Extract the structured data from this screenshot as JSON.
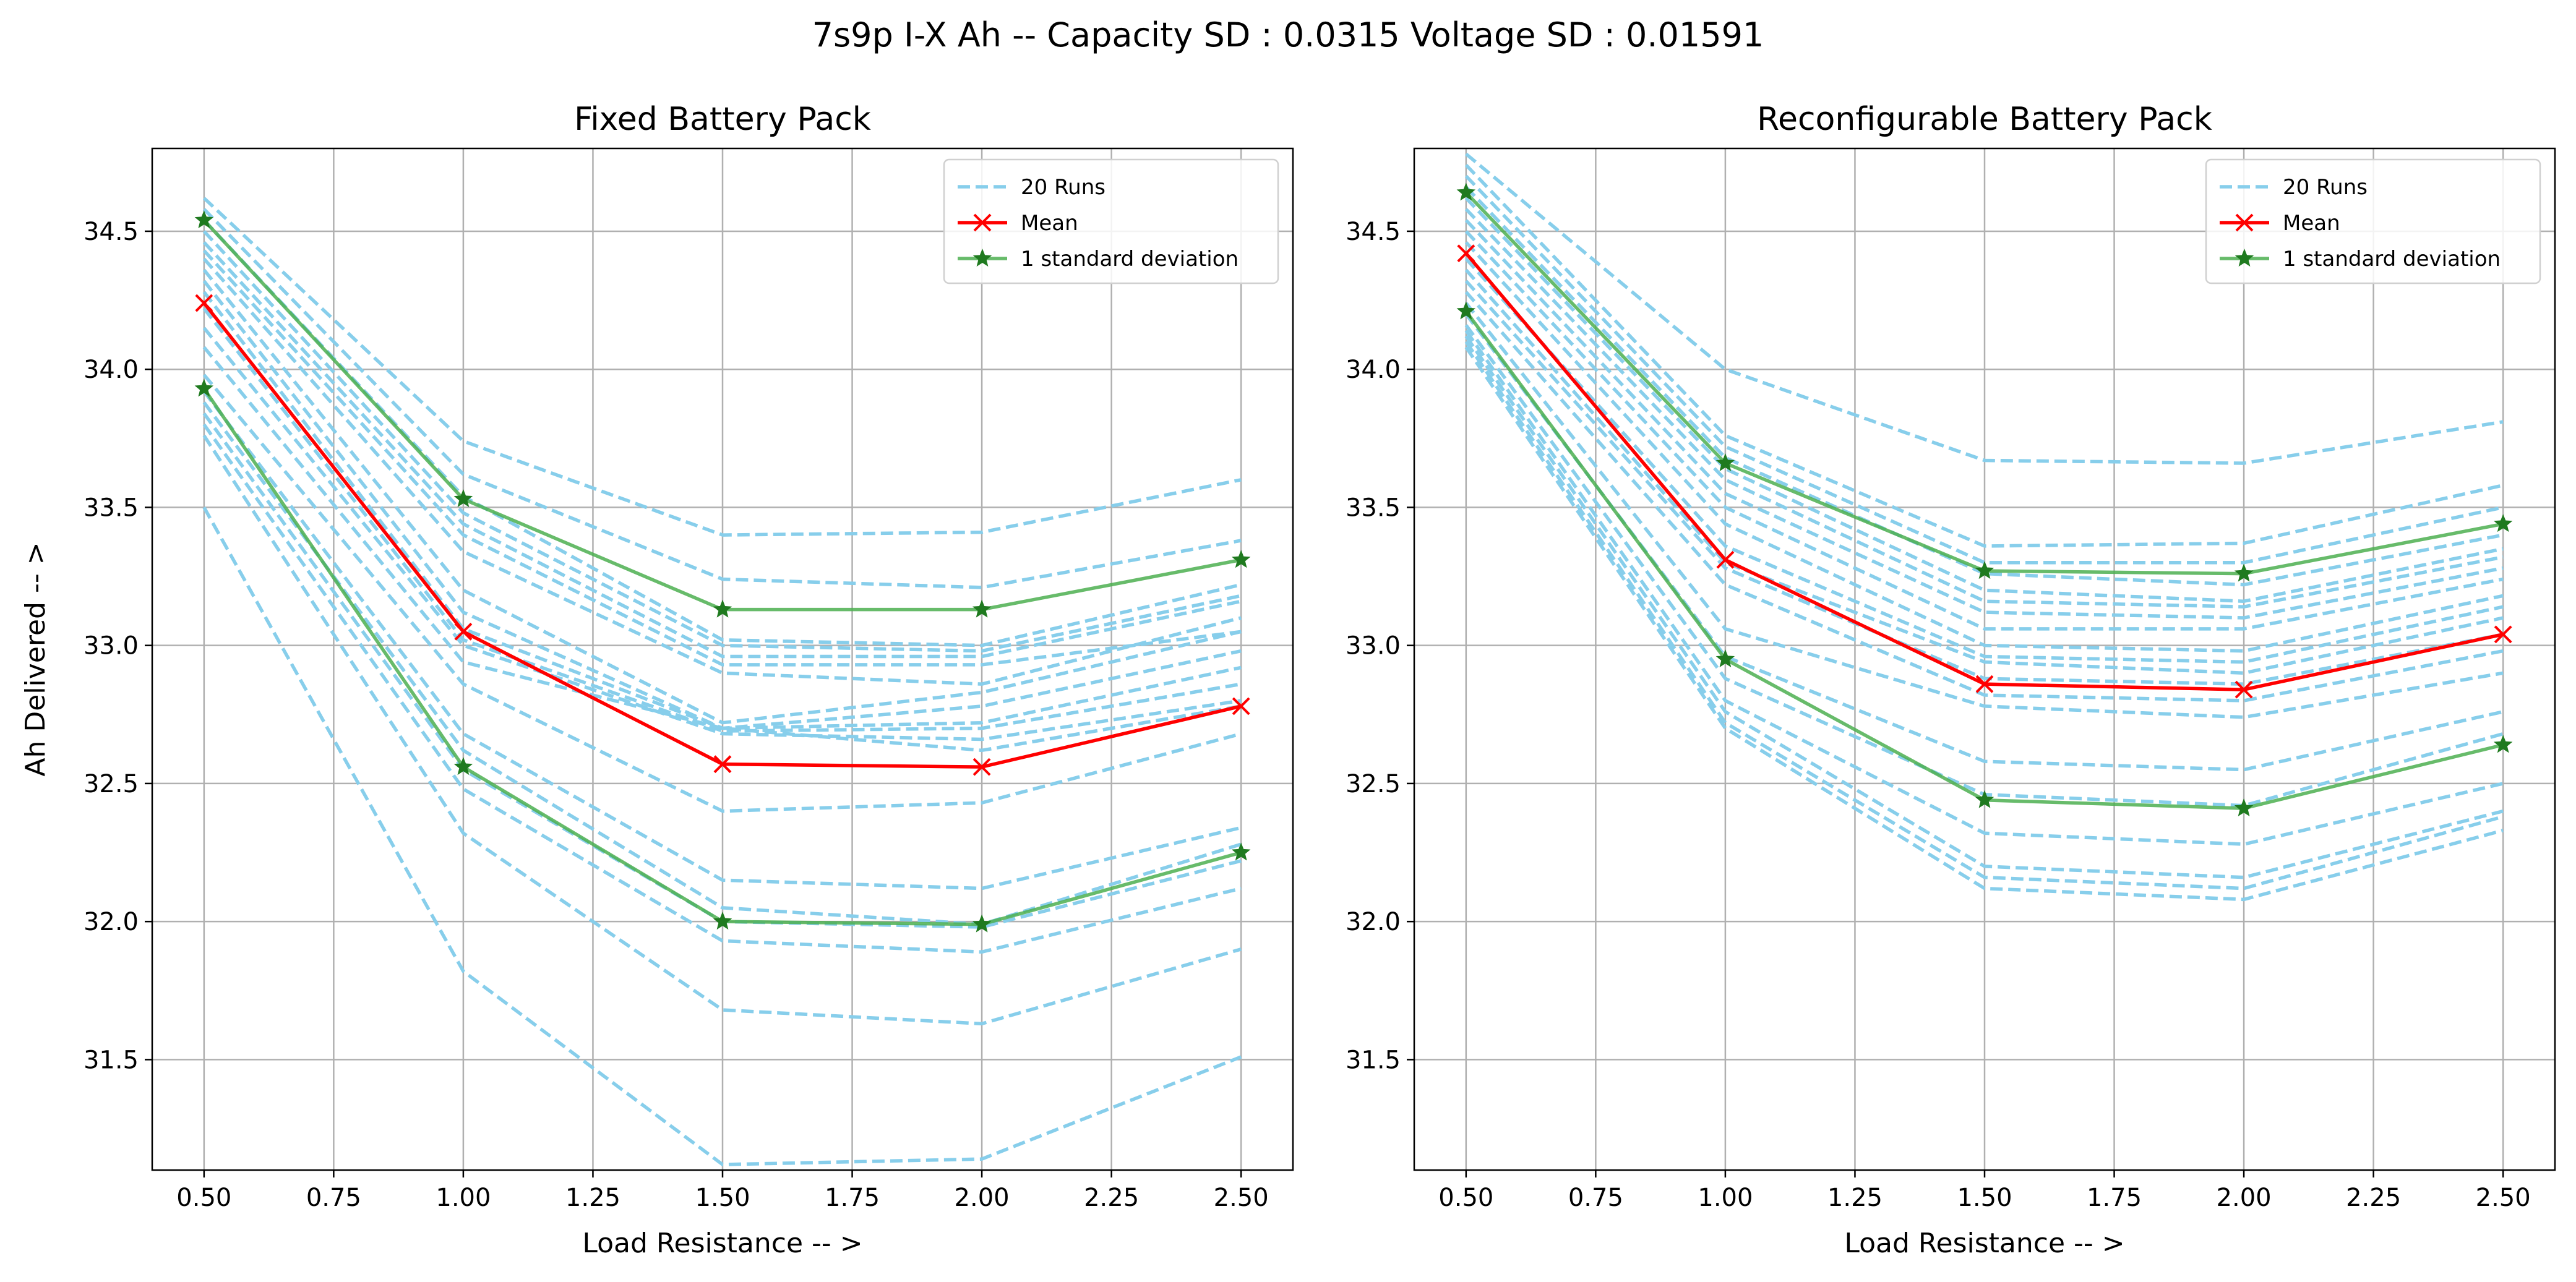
{
  "figure": {
    "suptitle": "7s9p  I-X Ah -- Capacity SD : 0.0315 Voltage SD : 0.01591"
  },
  "chart_data": [
    {
      "type": "line",
      "title": "Fixed Battery Pack",
      "xlabel": "Load Resistance -- >",
      "ylabel": "Ah Delivered -- >",
      "x": [
        0.5,
        1.0,
        1.5,
        2.0,
        2.5
      ],
      "xlim": [
        0.4,
        2.6
      ],
      "ylim": [
        31.1,
        34.8
      ],
      "xticks": [
        "0.50",
        "0.75",
        "1.00",
        "1.25",
        "1.50",
        "1.75",
        "2.00",
        "2.25",
        "2.50"
      ],
      "yticks": [
        "31.5",
        "32.0",
        "32.5",
        "33.0",
        "33.5",
        "34.0",
        "34.5"
      ],
      "grid": true,
      "legend_position": "top-right",
      "legend": [
        "20 Runs",
        "Mean",
        "1 standard deviation"
      ],
      "runs": [
        [
          34.62,
          33.74,
          33.4,
          33.41,
          33.6
        ],
        [
          34.58,
          33.62,
          33.24,
          33.21,
          33.38
        ],
        [
          34.54,
          33.54,
          33.02,
          33.0,
          33.22
        ],
        [
          34.5,
          33.48,
          33.0,
          32.98,
          33.18
        ],
        [
          34.46,
          33.44,
          32.96,
          32.96,
          33.16
        ],
        [
          34.43,
          33.4,
          32.93,
          32.93,
          33.05
        ],
        [
          34.4,
          33.34,
          32.9,
          32.86,
          33.1
        ],
        [
          34.36,
          33.2,
          32.72,
          32.83,
          33.05
        ],
        [
          34.32,
          33.12,
          32.7,
          32.78,
          32.98
        ],
        [
          34.28,
          33.06,
          32.7,
          32.72,
          32.92
        ],
        [
          34.22,
          33.02,
          32.69,
          32.7,
          32.86
        ],
        [
          34.15,
          33.0,
          32.68,
          32.66,
          32.8
        ],
        [
          34.08,
          32.94,
          32.7,
          32.62,
          32.78
        ],
        [
          33.98,
          32.86,
          32.4,
          32.43,
          32.68
        ],
        [
          33.92,
          32.68,
          32.15,
          32.12,
          32.34
        ],
        [
          33.88,
          32.62,
          32.05,
          31.99,
          32.28
        ],
        [
          33.84,
          32.55,
          32.0,
          31.98,
          32.22
        ],
        [
          33.8,
          32.48,
          31.93,
          31.89,
          32.12
        ],
        [
          33.76,
          32.32,
          31.68,
          31.63,
          31.9
        ],
        [
          33.5,
          31.82,
          31.12,
          31.14,
          31.51
        ]
      ],
      "mean": [
        34.24,
        33.05,
        32.57,
        32.56,
        32.78
      ],
      "sd_upper": [
        34.54,
        33.53,
        33.13,
        33.13,
        33.31
      ],
      "sd_lower": [
        33.93,
        32.56,
        32.0,
        31.99,
        32.25
      ]
    },
    {
      "type": "line",
      "title": "Reconfigurable Battery Pack",
      "xlabel": "Load Resistance -- >",
      "ylabel": "",
      "x": [
        0.5,
        1.0,
        1.5,
        2.0,
        2.5
      ],
      "xlim": [
        0.4,
        2.6
      ],
      "ylim": [
        31.1,
        34.8
      ],
      "xticks": [
        "0.50",
        "0.75",
        "1.00",
        "1.25",
        "1.50",
        "1.75",
        "2.00",
        "2.25",
        "2.50"
      ],
      "yticks": [
        "31.5",
        "32.0",
        "32.5",
        "33.0",
        "33.5",
        "34.0",
        "34.5"
      ],
      "grid": true,
      "legend_position": "top-right",
      "legend": [
        "20 Runs",
        "Mean",
        "1 standard deviation"
      ],
      "runs": [
        [
          34.78,
          34.0,
          33.67,
          33.66,
          33.81
        ],
        [
          34.74,
          33.76,
          33.36,
          33.37,
          33.58
        ],
        [
          34.7,
          33.72,
          33.3,
          33.3,
          33.5
        ],
        [
          34.66,
          33.68,
          33.26,
          33.22,
          33.4
        ],
        [
          34.62,
          33.64,
          33.2,
          33.16,
          33.35
        ],
        [
          34.58,
          33.6,
          33.16,
          33.14,
          33.32
        ],
        [
          34.54,
          33.55,
          33.12,
          33.1,
          33.28
        ],
        [
          34.5,
          33.5,
          33.06,
          33.06,
          33.24
        ],
        [
          34.46,
          33.44,
          33.0,
          32.98,
          33.18
        ],
        [
          34.4,
          33.36,
          32.96,
          32.94,
          33.14
        ],
        [
          34.36,
          33.3,
          32.94,
          32.9,
          33.1
        ],
        [
          34.32,
          33.28,
          32.88,
          32.86,
          33.04
        ],
        [
          34.28,
          33.22,
          32.82,
          32.8,
          32.98
        ],
        [
          34.24,
          33.06,
          32.78,
          32.74,
          32.9
        ],
        [
          34.2,
          32.96,
          32.58,
          32.55,
          32.76
        ],
        [
          34.16,
          32.88,
          32.46,
          32.42,
          32.68
        ],
        [
          34.14,
          32.8,
          32.32,
          32.28,
          32.5
        ],
        [
          34.12,
          32.76,
          32.2,
          32.16,
          32.4
        ],
        [
          34.1,
          32.72,
          32.16,
          32.12,
          32.38
        ],
        [
          34.08,
          32.7,
          32.12,
          32.08,
          32.33
        ]
      ],
      "mean": [
        34.42,
        33.31,
        32.86,
        32.84,
        33.04
      ],
      "sd_upper": [
        34.64,
        33.66,
        33.27,
        33.26,
        33.44
      ],
      "sd_lower": [
        34.21,
        32.95,
        32.44,
        32.41,
        32.64
      ]
    }
  ]
}
